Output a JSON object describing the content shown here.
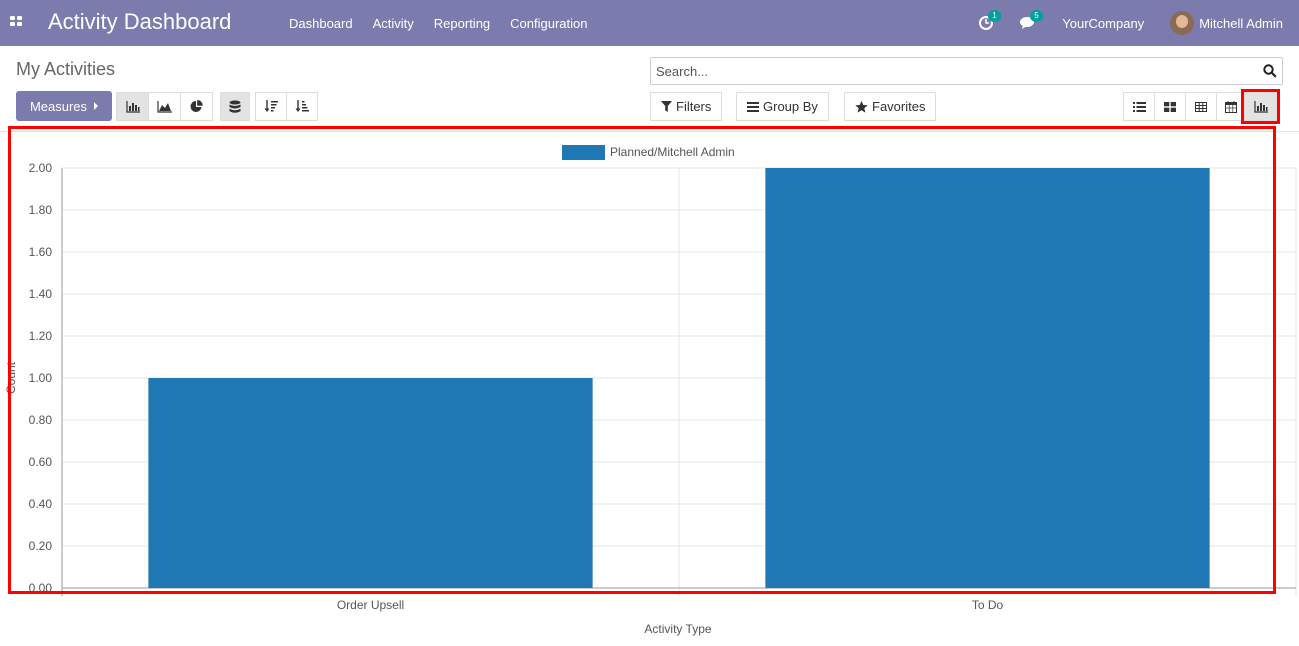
{
  "navbar": {
    "app_title": "Activity Dashboard",
    "menu": [
      "Dashboard",
      "Activity",
      "Reporting",
      "Configuration"
    ],
    "activity_badge": "1",
    "messages_badge": "5",
    "company": "YourCompany",
    "user": "Mitchell Admin",
    "color": "#7c7bad"
  },
  "control_panel": {
    "title": "My Activities",
    "search_placeholder": "Search...",
    "measures_label": "Measures",
    "filters_label": "Filters",
    "group_by_label": "Group By",
    "favorites_label": "Favorites"
  },
  "chart_data": {
    "type": "bar",
    "categories": [
      "Order Upsell",
      "To Do"
    ],
    "series": [
      {
        "name": "Planned/Mitchell Admin",
        "values": [
          1,
          2
        ],
        "color": "#1f77b4"
      }
    ],
    "xlabel": "Activity Type",
    "ylabel": "Count",
    "ylim": [
      0,
      2
    ],
    "yticks": [
      "0.00",
      "0.20",
      "0.40",
      "0.60",
      "0.80",
      "1.00",
      "1.20",
      "1.40",
      "1.60",
      "1.80",
      "2.00"
    ],
    "legend_position": "top-center",
    "grid": true
  }
}
